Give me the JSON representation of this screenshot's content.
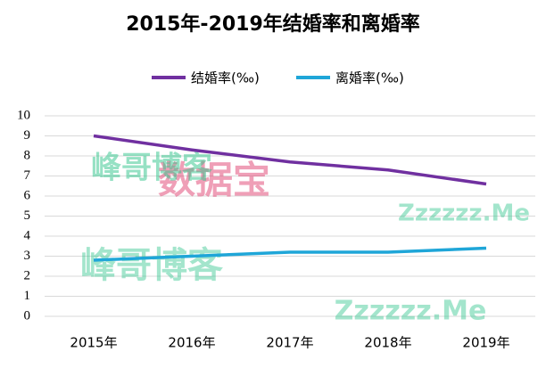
{
  "chart_data": {
    "type": "line",
    "title": "2015年-2019年结婚率和离婚率",
    "categories": [
      "2015年",
      "2016年",
      "2017年",
      "2018年",
      "2019年"
    ],
    "series": [
      {
        "name": "结婚率(‰)",
        "color": "#7030a0",
        "values": [
          9.0,
          8.3,
          7.7,
          7.3,
          6.6
        ]
      },
      {
        "name": "离婚率(‰)",
        "color": "#1fa6d8",
        "values": [
          2.8,
          3.0,
          3.2,
          3.2,
          3.4
        ]
      }
    ],
    "ylim": [
      0,
      10
    ],
    "yticks": [
      0,
      1,
      2,
      3,
      4,
      5,
      6,
      7,
      8,
      9,
      10
    ],
    "grid": true,
    "legend": "top",
    "watermarks": [
      "数据宝",
      "峰哥博客",
      "Zzzzzz.Me",
      "峰哥博客",
      "Zzzzzz.Me"
    ]
  }
}
